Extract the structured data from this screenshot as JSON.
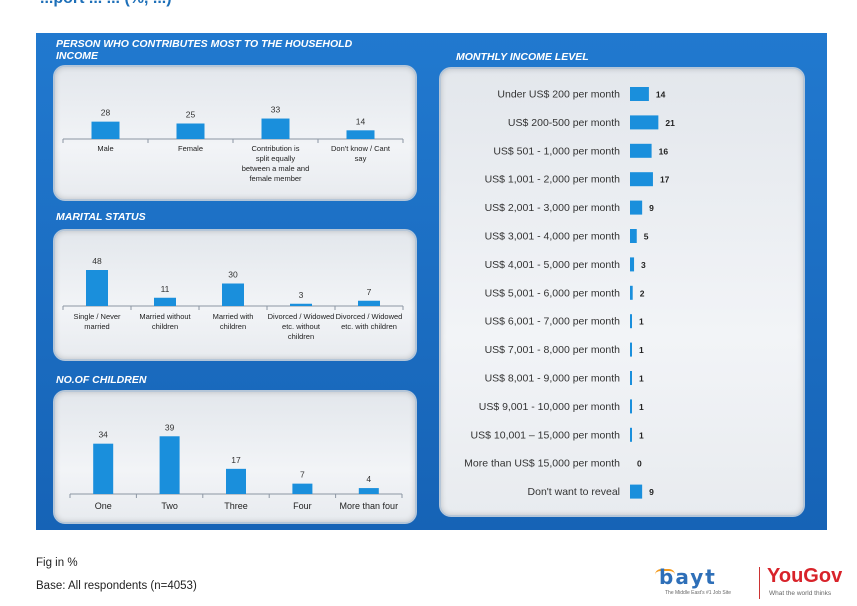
{
  "header": {
    "title": "...port ... ...  (%, ...)"
  },
  "footer": {
    "note": "Fig in %",
    "base": "Base: All respondents (n=4053)"
  },
  "logos": {
    "bayt": "bayt",
    "bayt_tagline": "The Middle East's #1 Job Site",
    "yougov": "YouGov",
    "yougov_tagline": "What the world thinks"
  },
  "colors": {
    "background": "#1a6cc2",
    "bar": "#1a8fdc",
    "panel": "#eceff3"
  },
  "chart_data": [
    {
      "type": "bar",
      "title": "PERSON WHO CONTRIBUTES MOST TO THE HOUSEHOLD INCOME",
      "categories": [
        "Male",
        "Female",
        "Contribution is split equally between a male and female member",
        "Don't know / Cant say"
      ],
      "values": [
        28,
        25,
        33,
        14
      ]
    },
    {
      "type": "bar",
      "title": "MARITAL STATUS",
      "categories": [
        "Single / Never married",
        "Married without children",
        "Married with children",
        "Divorced / Widowed etc. without children",
        "Divorced / Widowed etc. with children"
      ],
      "values": [
        48,
        11,
        30,
        3,
        7
      ]
    },
    {
      "type": "bar",
      "title": "NO.OF CHILDREN",
      "categories": [
        "One",
        "Two",
        "Three",
        "Four",
        "More than four"
      ],
      "values": [
        34,
        39,
        17,
        7,
        4
      ]
    },
    {
      "type": "bar",
      "orientation": "horizontal",
      "title": "MONTHLY INCOME LEVEL",
      "categories": [
        "Under US$ 200 per month",
        "US$ 200-500 per month",
        "US$ 501 - 1,000 per month",
        "US$ 1,001 - 2,000 per month",
        "US$ 2,001 - 3,000 per month",
        "US$ 3,001 - 4,000 per month",
        "US$ 4,001 - 5,000 per month",
        "US$ 5,001 - 6,000 per month",
        "US$ 6,001 - 7,000 per month",
        "US$ 7,001 - 8,000 per month",
        "US$ 8,001 - 9,000 per month",
        "US$ 9,001 - 10,000 per month",
        "US$ 10,001 – 15,000 per month",
        "More than US$ 15,000 per month",
        "Don't want to reveal"
      ],
      "values": [
        14,
        21,
        16,
        17,
        9,
        5,
        3,
        2,
        1,
        1,
        1,
        1,
        1,
        0,
        9
      ]
    }
  ]
}
